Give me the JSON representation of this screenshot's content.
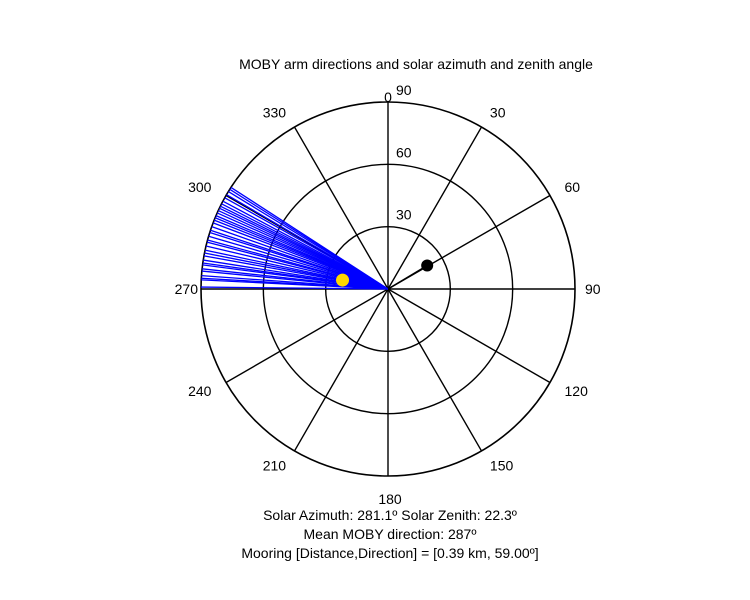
{
  "chart_data": {
    "type": "polar",
    "title": "MOBY arm directions and solar azimuth and zenith angle",
    "angular_ticks": [
      "0",
      "30",
      "60",
      "90",
      "120",
      "150",
      "180",
      "210",
      "240",
      "270",
      "300",
      "330"
    ],
    "radial_ticks": [
      "30",
      "60",
      "90"
    ],
    "radial_max": 90,
    "angle_direction": "clockwise",
    "zero_location": "top",
    "arm_direction_series": {
      "color": "#0000ff",
      "radius": 90,
      "directions_deg": [
        270.6,
        272.8,
        273.3,
        274.1,
        275.5,
        276.2,
        277.4,
        278.0,
        278.9,
        280.2,
        281.1,
        282.0,
        283.3,
        284.5,
        285.2,
        286.4,
        287.6,
        288.3,
        289.5,
        290.7,
        291.6,
        292.4,
        293.1,
        294.0,
        294.8,
        295.6,
        296.3,
        297.1,
        298.0,
        299.2,
        300.3,
        301.4,
        302.2,
        302.9
      ]
    },
    "mooring_point": {
      "direction_deg": 59.0,
      "radius": 22.0,
      "color": "#000000"
    },
    "sun_point": {
      "azimuth_deg": 281.1,
      "zenith_deg": 22.3,
      "color": "#ffd700"
    },
    "grid": true
  },
  "captions": {
    "line1": "Solar Azimuth: 281.1º   Solar Zenith: 22.3º",
    "line2": "Mean MOBY direction: 287º",
    "line3": "Mooring [Distance,Direction] = [0.39 km, 59.00º]"
  }
}
